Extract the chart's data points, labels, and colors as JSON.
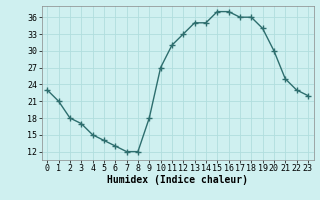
{
  "x": [
    0,
    1,
    2,
    3,
    4,
    5,
    6,
    7,
    8,
    9,
    10,
    11,
    12,
    13,
    14,
    15,
    16,
    17,
    18,
    19,
    20,
    21,
    22,
    23
  ],
  "y": [
    23,
    21,
    18,
    17,
    15,
    14,
    13,
    12,
    12,
    18,
    27,
    31,
    33,
    35,
    35,
    37,
    37,
    36,
    36,
    34,
    30,
    25,
    23,
    22
  ],
  "line_color": "#2d6e6e",
  "marker": "+",
  "marker_size": 4,
  "line_width": 1.0,
  "bg_color": "#cff0f0",
  "grid_color": "#b0dede",
  "xlabel": "Humidex (Indice chaleur)",
  "xlabel_fontsize": 7,
  "yticks": [
    12,
    15,
    18,
    21,
    24,
    27,
    30,
    33,
    36
  ],
  "xticks": [
    0,
    1,
    2,
    3,
    4,
    5,
    6,
    7,
    8,
    9,
    10,
    11,
    12,
    13,
    14,
    15,
    16,
    17,
    18,
    19,
    20,
    21,
    22,
    23
  ],
  "ylim": [
    10.5,
    38
  ],
  "xlim": [
    -0.5,
    23.5
  ],
  "tick_fontsize": 6.0
}
